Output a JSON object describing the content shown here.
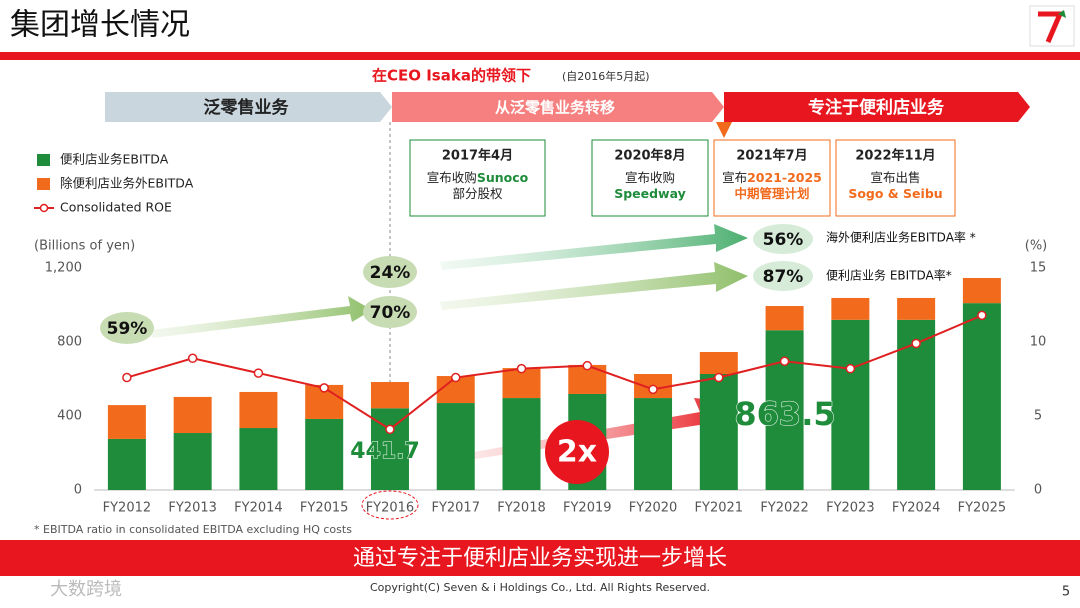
{
  "header": {
    "title": "集团增长情况"
  },
  "subtitle": {
    "main": "在CEO Isaka的带领下",
    "note": "(自2016年5月起)"
  },
  "phases": [
    "泛零售业务",
    "从泛零售业务转移",
    "专注于便利店业务"
  ],
  "events": [
    {
      "date": "2017年4月",
      "lines": [
        [
          {
            "text": "宣布收购"
          },
          {
            "text": "Sunoco",
            "color": "#1e8c3a"
          }
        ],
        [
          {
            "text": "部分股权"
          }
        ]
      ]
    },
    {
      "date": "2020年8月",
      "lines": [
        [
          {
            "text": "宣布收购"
          }
        ],
        [
          {
            "text": "Speedway",
            "color": "#1e8c3a"
          }
        ]
      ]
    },
    {
      "date": "2021年7月",
      "lines": [
        [
          {
            "text": "宣布"
          },
          {
            "text": "2021-2025",
            "color": "#f26b1d"
          }
        ],
        [
          {
            "text": "中期管理计划",
            "color": "#f26b1d"
          }
        ]
      ]
    },
    {
      "date": "2022年11月",
      "lines": [
        [
          {
            "text": "宣布出售"
          }
        ],
        [
          {
            "text": "Sogo & Seibu",
            "color": "#f26b1d"
          }
        ]
      ]
    }
  ],
  "chart_data": {
    "type": "bar",
    "stacked": true,
    "categories": [
      "FY2012",
      "FY2013",
      "FY2014",
      "FY2015",
      "FY2016",
      "FY2017",
      "FY2018",
      "FY2019",
      "FY2020",
      "FY2021",
      "FY2022",
      "FY2023",
      "FY2024",
      "FY2025"
    ],
    "series": [
      {
        "name": "便利店业务EBITDA",
        "color": "#1e8c3a",
        "values": [
          276,
          308,
          335,
          384,
          441.7,
          470,
          497,
          519,
          497,
          627,
          863.5,
          920,
          920,
          1010
        ]
      },
      {
        "name": "除便利店业务外EBITDA",
        "color": "#f26b1d",
        "values": [
          183,
          195,
          195,
          184,
          142,
          146,
          162,
          157,
          130,
          119,
          131,
          118,
          118,
          136
        ]
      },
      {
        "name": "Consolidated ROE",
        "color": "#e02020",
        "type": "line",
        "axis": "y2",
        "values": [
          7.6,
          8.9,
          7.9,
          6.9,
          4.1,
          7.6,
          8.2,
          8.4,
          6.8,
          7.6,
          8.7,
          8.2,
          9.9,
          11.8
        ]
      }
    ],
    "ylabel": "(Billions of yen)",
    "y2label": "(%)",
    "ylim": [
      0,
      1200
    ],
    "yticks": [
      0,
      400,
      800,
      {
        "value": 1200,
        "label": "1,200"
      }
    ],
    "y2lim": [
      0,
      15
    ],
    "y2ticks": [
      0,
      5,
      10,
      15
    ],
    "ratio_labels": [
      "59%",
      "24%",
      "70%",
      "56%",
      "87%"
    ],
    "ratio_notes": [
      "海外便利店业务EBITDA率 *",
      "便利店业务 EBITDA率*"
    ],
    "growth_label": "2x",
    "footnote": "* EBITDA ratio in consolidated EBITDA excluding HQ costs"
  },
  "footer": {
    "banner": "通过专注于便利店业务实现进一步增长",
    "copyright": "Copyright(C) Seven & i Holdings Co., Ltd. All Rights Reserved.",
    "page": "5",
    "watermark": "大数跨境"
  }
}
